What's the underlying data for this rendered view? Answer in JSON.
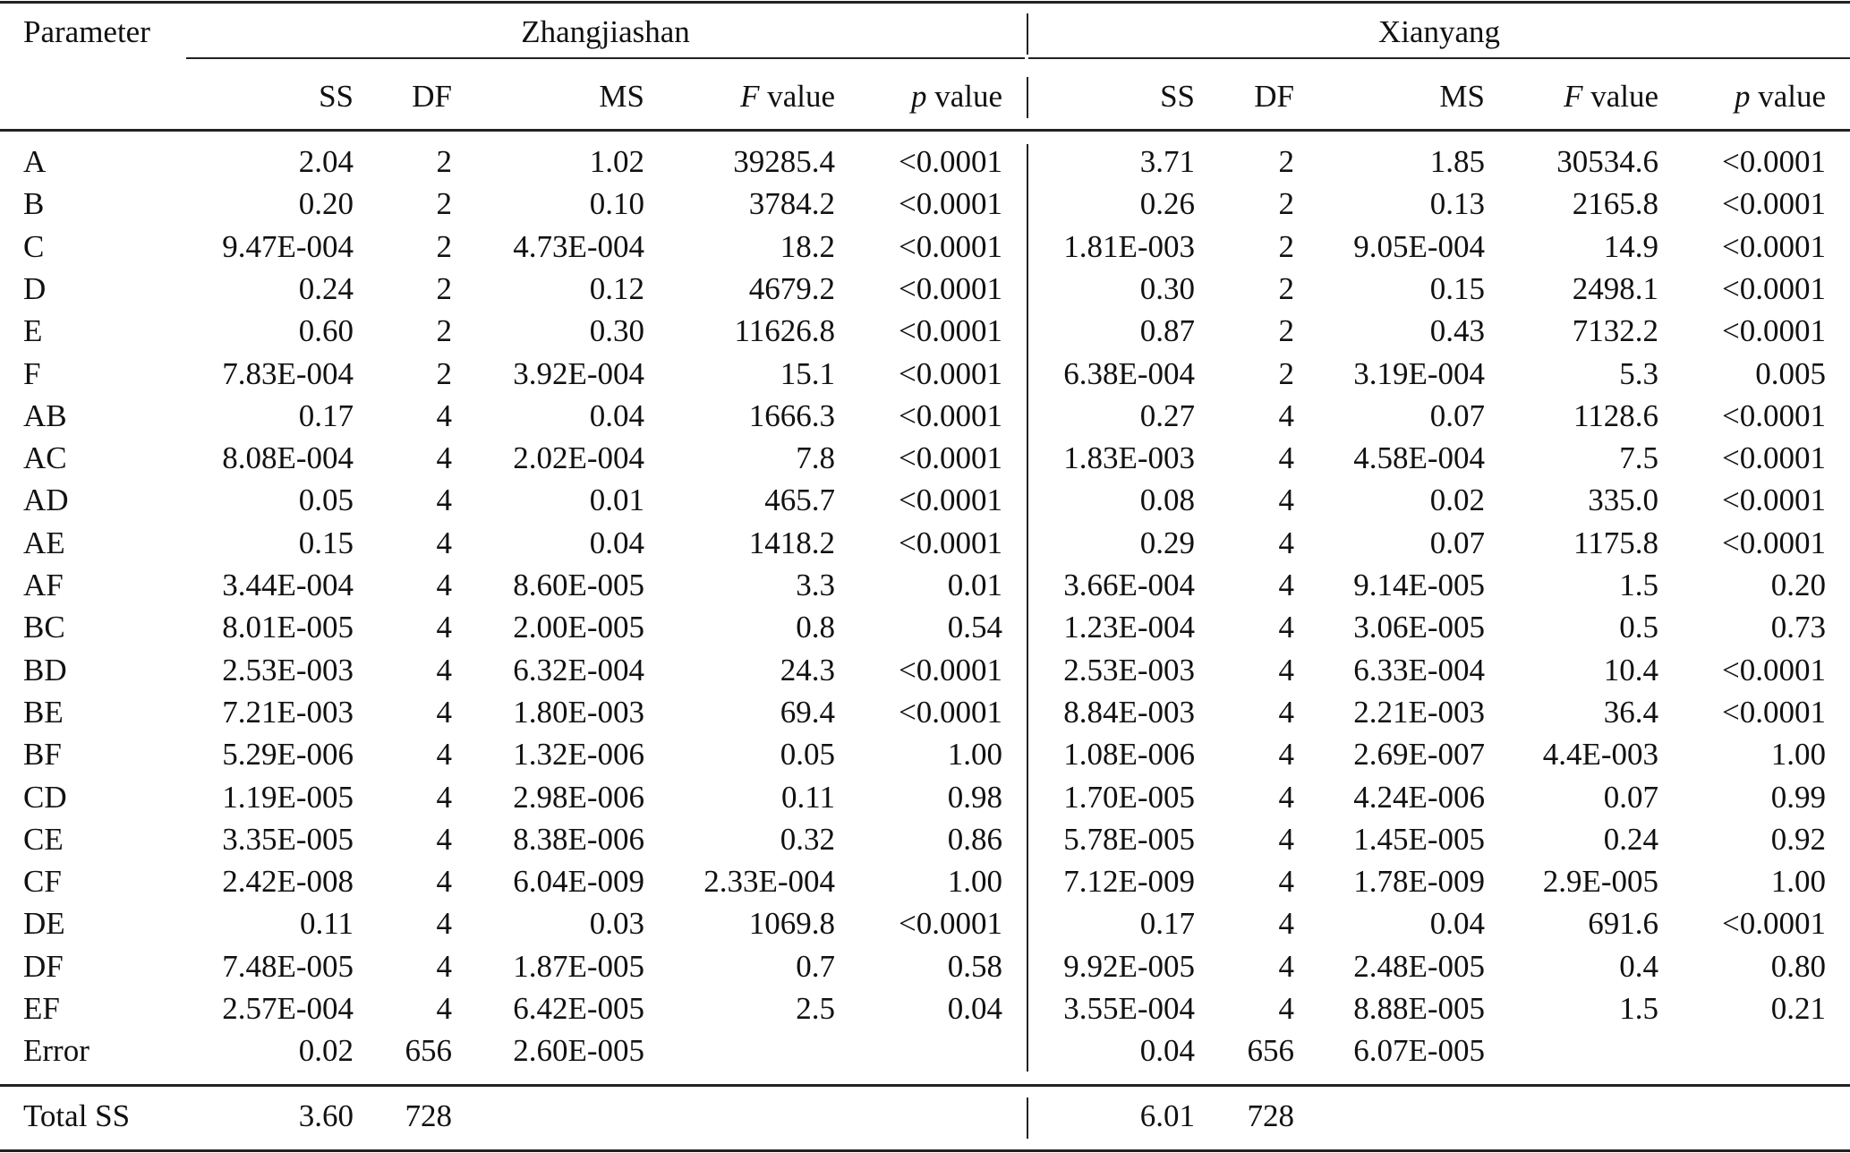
{
  "table": {
    "param_header": "Parameter",
    "groups": [
      "Zhangjiashan",
      "Xianyang"
    ],
    "columns": [
      "SS",
      "DF",
      "MS",
      "F value",
      "p value"
    ],
    "rows": [
      {
        "param": "A",
        "z": [
          "2.04",
          "2",
          "1.02",
          "39285.4",
          "<0.0001"
        ],
        "x": [
          "3.71",
          "2",
          "1.85",
          "30534.6",
          "<0.0001"
        ]
      },
      {
        "param": "B",
        "z": [
          "0.20",
          "2",
          "0.10",
          "3784.2",
          "<0.0001"
        ],
        "x": [
          "0.26",
          "2",
          "0.13",
          "2165.8",
          "<0.0001"
        ]
      },
      {
        "param": "C",
        "z": [
          "9.47E-004",
          "2",
          "4.73E-004",
          "18.2",
          "<0.0001"
        ],
        "x": [
          "1.81E-003",
          "2",
          "9.05E-004",
          "14.9",
          "<0.0001"
        ]
      },
      {
        "param": "D",
        "z": [
          "0.24",
          "2",
          "0.12",
          "4679.2",
          "<0.0001"
        ],
        "x": [
          "0.30",
          "2",
          "0.15",
          "2498.1",
          "<0.0001"
        ]
      },
      {
        "param": "E",
        "z": [
          "0.60",
          "2",
          "0.30",
          "11626.8",
          "<0.0001"
        ],
        "x": [
          "0.87",
          "2",
          "0.43",
          "7132.2",
          "<0.0001"
        ]
      },
      {
        "param": "F",
        "z": [
          "7.83E-004",
          "2",
          "3.92E-004",
          "15.1",
          "<0.0001"
        ],
        "x": [
          "6.38E-004",
          "2",
          "3.19E-004",
          "5.3",
          "0.005"
        ]
      },
      {
        "param": "AB",
        "z": [
          "0.17",
          "4",
          "0.04",
          "1666.3",
          "<0.0001"
        ],
        "x": [
          "0.27",
          "4",
          "0.07",
          "1128.6",
          "<0.0001"
        ]
      },
      {
        "param": "AC",
        "z": [
          "8.08E-004",
          "4",
          "2.02E-004",
          "7.8",
          "<0.0001"
        ],
        "x": [
          "1.83E-003",
          "4",
          "4.58E-004",
          "7.5",
          "<0.0001"
        ]
      },
      {
        "param": "AD",
        "z": [
          "0.05",
          "4",
          "0.01",
          "465.7",
          "<0.0001"
        ],
        "x": [
          "0.08",
          "4",
          "0.02",
          "335.0",
          "<0.0001"
        ]
      },
      {
        "param": "AE",
        "z": [
          "0.15",
          "4",
          "0.04",
          "1418.2",
          "<0.0001"
        ],
        "x": [
          "0.29",
          "4",
          "0.07",
          "1175.8",
          "<0.0001"
        ]
      },
      {
        "param": "AF",
        "z": [
          "3.44E-004",
          "4",
          "8.60E-005",
          "3.3",
          "0.01"
        ],
        "x": [
          "3.66E-004",
          "4",
          "9.14E-005",
          "1.5",
          "0.20"
        ]
      },
      {
        "param": "BC",
        "z": [
          "8.01E-005",
          "4",
          "2.00E-005",
          "0.8",
          "0.54"
        ],
        "x": [
          "1.23E-004",
          "4",
          "3.06E-005",
          "0.5",
          "0.73"
        ]
      },
      {
        "param": "BD",
        "z": [
          "2.53E-003",
          "4",
          "6.32E-004",
          "24.3",
          "<0.0001"
        ],
        "x": [
          "2.53E-003",
          "4",
          "6.33E-004",
          "10.4",
          "<0.0001"
        ]
      },
      {
        "param": "BE",
        "z": [
          "7.21E-003",
          "4",
          "1.80E-003",
          "69.4",
          "<0.0001"
        ],
        "x": [
          "8.84E-003",
          "4",
          "2.21E-003",
          "36.4",
          "<0.0001"
        ]
      },
      {
        "param": "BF",
        "z": [
          "5.29E-006",
          "4",
          "1.32E-006",
          "0.05",
          "1.00"
        ],
        "x": [
          "1.08E-006",
          "4",
          "2.69E-007",
          "4.4E-003",
          "1.00"
        ]
      },
      {
        "param": "CD",
        "z": [
          "1.19E-005",
          "4",
          "2.98E-006",
          "0.11",
          "0.98"
        ],
        "x": [
          "1.70E-005",
          "4",
          "4.24E-006",
          "0.07",
          "0.99"
        ]
      },
      {
        "param": "CE",
        "z": [
          "3.35E-005",
          "4",
          "8.38E-006",
          "0.32",
          "0.86"
        ],
        "x": [
          "5.78E-005",
          "4",
          "1.45E-005",
          "0.24",
          "0.92"
        ]
      },
      {
        "param": "CF",
        "z": [
          "2.42E-008",
          "4",
          "6.04E-009",
          "2.33E-004",
          "1.00"
        ],
        "x": [
          "7.12E-009",
          "4",
          "1.78E-009",
          "2.9E-005",
          "1.00"
        ]
      },
      {
        "param": "DE",
        "z": [
          "0.11",
          "4",
          "0.03",
          "1069.8",
          "<0.0001"
        ],
        "x": [
          "0.17",
          "4",
          "0.04",
          "691.6",
          "<0.0001"
        ]
      },
      {
        "param": "DF",
        "z": [
          "7.48E-005",
          "4",
          "1.87E-005",
          "0.7",
          "0.58"
        ],
        "x": [
          "9.92E-005",
          "4",
          "2.48E-005",
          "0.4",
          "0.80"
        ]
      },
      {
        "param": "EF",
        "z": [
          "2.57E-004",
          "4",
          "6.42E-005",
          "2.5",
          "0.04"
        ],
        "x": [
          "3.55E-004",
          "4",
          "8.88E-005",
          "1.5",
          "0.21"
        ]
      },
      {
        "param": "Error",
        "z": [
          "0.02",
          "656",
          "2.60E-005",
          "",
          ""
        ],
        "x": [
          "0.04",
          "656",
          "6.07E-005",
          "",
          ""
        ]
      }
    ],
    "total": {
      "param": "Total SS",
      "z": [
        "3.60",
        "728"
      ],
      "x": [
        "6.01",
        "728"
      ]
    }
  }
}
